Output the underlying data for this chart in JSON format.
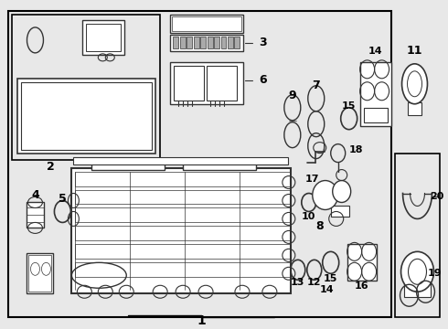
{
  "bg_color": "#e8e8e8",
  "border_color": "#000000",
  "dgray": "#333333",
  "gray": "#666666",
  "lgray": "#aaaaaa",
  "white": "#ffffff",
  "font_size": 8
}
